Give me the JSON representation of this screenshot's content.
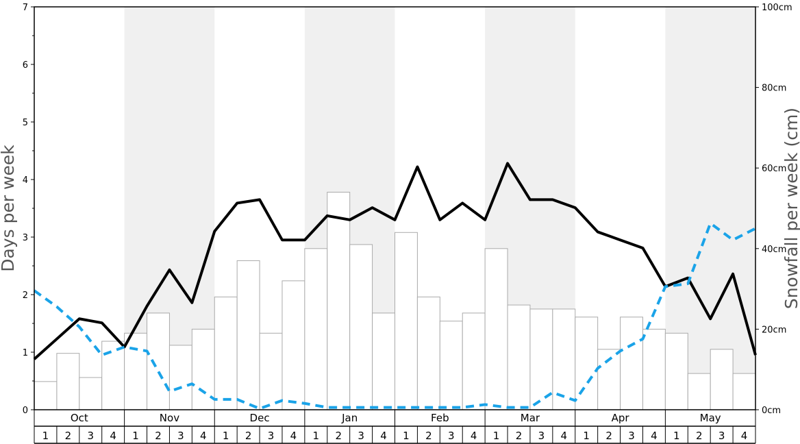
{
  "chart_data": {
    "type": "bar+line",
    "title": "",
    "ylabel_left": "Days per week",
    "ylabel_right": "Snowfall per week (cm)",
    "ylim_left": [
      0,
      7
    ],
    "ylim_right": [
      0,
      100
    ],
    "left_ticks": [
      "0",
      "1",
      "2",
      "3",
      "4",
      "5",
      "6",
      "7"
    ],
    "right_ticks": [
      "0cm",
      "20cm",
      "40cm",
      "60cm",
      "80cm",
      "100cm"
    ],
    "months": [
      "Oct",
      "Nov",
      "Dec",
      "Jan",
      "Feb",
      "Mar",
      "Apr",
      "May"
    ],
    "weeks": [
      "1",
      "2",
      "3",
      "4"
    ],
    "shaded_months": [
      "Nov",
      "Jan",
      "Mar",
      "May"
    ],
    "colors": {
      "bar_fill": "#ffffff",
      "bar_stroke": "#aaaaaa",
      "days_line": "#000000",
      "snow_line": "#1aa3e8",
      "shade": "#f0f0f0"
    },
    "series": [
      {
        "kind": "bar",
        "axis": "right",
        "values": [
          7,
          14,
          8,
          17,
          19,
          24,
          16,
          20,
          28,
          37,
          19,
          32,
          40,
          54,
          41,
          24,
          44,
          28,
          22,
          24,
          40,
          26,
          25,
          25,
          23,
          15,
          23,
          20,
          19,
          9,
          15,
          9
        ]
      },
      {
        "kind": "line",
        "axis": "left",
        "style": "solid",
        "values": [
          0.88,
          1.23,
          1.58,
          1.51,
          1.09,
          1.8,
          2.43,
          1.86,
          3.1,
          3.59,
          3.65,
          2.95,
          2.95,
          3.37,
          3.3,
          3.51,
          3.3,
          4.22,
          3.3,
          3.59,
          3.3,
          4.28,
          3.65,
          3.65,
          3.51,
          3.09,
          2.95,
          2.81,
          2.14,
          2.29,
          1.58,
          2.36,
          0.95
        ]
      },
      {
        "kind": "line",
        "axis": "left",
        "style": "dashed",
        "values": [
          2.07,
          1.79,
          1.44,
          0.95,
          1.09,
          1.02,
          0.32,
          0.45,
          0.18,
          0.18,
          0.02,
          0.16,
          0.11,
          0.04,
          0.04,
          0.04,
          0.04,
          0.04,
          0.04,
          0.04,
          0.09,
          0.04,
          0.04,
          0.3,
          0.16,
          0.72,
          1.02,
          1.23,
          2.14,
          2.19,
          3.24,
          2.95,
          3.15
        ]
      }
    ]
  }
}
